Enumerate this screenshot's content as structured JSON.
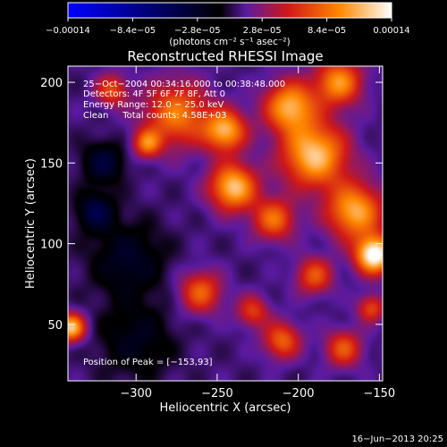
{
  "chart_data": {
    "type": "heatmap",
    "title": "Reconstructed RHESSI Image",
    "xlabel": "Heliocentric X (arcsec)",
    "ylabel": "Heliocentric Y (arcsec)",
    "xlim": [
      -342,
      -148
    ],
    "ylim": [
      15,
      210
    ],
    "x_ticks": [
      {
        "value": -300,
        "label": "−300"
      },
      {
        "value": -250,
        "label": "−250"
      },
      {
        "value": -200,
        "label": "−200"
      },
      {
        "value": -150,
        "label": "−150"
      }
    ],
    "y_ticks": [
      {
        "value": 50,
        "label": "50"
      },
      {
        "value": 100,
        "label": "100"
      },
      {
        "value": 150,
        "label": "150"
      },
      {
        "value": 200,
        "label": "200"
      }
    ],
    "colorbar": {
      "range": [
        -0.00014,
        0.00014
      ],
      "ticks": [
        {
          "value": -0.00014,
          "label": "−0.00014"
        },
        {
          "value": -8.4e-05,
          "label": "−8.4e−05"
        },
        {
          "value": -2.8e-05,
          "label": "−2.8e−05"
        },
        {
          "value": 2.8e-05,
          "label": "2.8e−05"
        },
        {
          "value": 8.4e-05,
          "label": "8.4e−05"
        },
        {
          "value": 0.00014,
          "label": "0.00014"
        }
      ],
      "unit_label": "(photons cm⁻² s⁻¹ asec⁻²)",
      "colors": [
        "#0000ff",
        "#000000",
        "#5a1aa0",
        "#d01818",
        "#ff8800",
        "#ffffff"
      ]
    },
    "annotations": {
      "time": "25−Oct−2004 00:34:16.000 to 00:38:48.000",
      "detectors": "Detectors: 4F 5F 6F 7F 8F, Att 0",
      "energy": "Energy Range: 12.0 − 25.0 keV",
      "clean": "Clean     Total counts: 4.58E+03",
      "peak": "Position of Peak = [−153,93]"
    },
    "peak_position": [
      -153,
      93
    ],
    "sources": [
      {
        "x": -153,
        "y": 93,
        "sigma": 8,
        "amp": 0.00014
      },
      {
        "x": -190,
        "y": 155,
        "sigma": 14,
        "amp": 0.00011
      },
      {
        "x": -240,
        "y": 135,
        "sigma": 10,
        "amp": 0.00011
      },
      {
        "x": -205,
        "y": 185,
        "sigma": 11,
        "amp": 0.0001
      },
      {
        "x": -165,
        "y": 120,
        "sigma": 12,
        "amp": 0.0001
      },
      {
        "x": -275,
        "y": 180,
        "sigma": 14,
        "amp": 8e-05
      },
      {
        "x": -245,
        "y": 170,
        "sigma": 9,
        "amp": 0.0001
      },
      {
        "x": -215,
        "y": 115,
        "sigma": 9,
        "amp": 7.5e-05
      },
      {
        "x": -175,
        "y": 200,
        "sigma": 10,
        "amp": 9e-05
      },
      {
        "x": -260,
        "y": 70,
        "sigma": 9,
        "amp": 7e-05
      },
      {
        "x": -210,
        "y": 40,
        "sigma": 8,
        "amp": 7e-05
      },
      {
        "x": -172,
        "y": 35,
        "sigma": 8,
        "amp": 6.5e-05
      },
      {
        "x": -293,
        "y": 162,
        "sigma": 6,
        "amp": 7.5e-05
      },
      {
        "x": -315,
        "y": 195,
        "sigma": 7,
        "amp": 6e-05
      },
      {
        "x": -340,
        "y": 48,
        "sigma": 6,
        "amp": 0.00011
      },
      {
        "x": -190,
        "y": 80,
        "sigma": 8,
        "amp": 6.5e-05
      },
      {
        "x": -228,
        "y": 58,
        "sigma": 7,
        "amp": 5.5e-05
      },
      {
        "x": -155,
        "y": 60,
        "sigma": 6,
        "amp": 6e-05
      },
      {
        "x": -320,
        "y": 150,
        "sigma": 9,
        "amp": -4.5e-05
      },
      {
        "x": -305,
        "y": 90,
        "sigma": 16,
        "amp": -3.5e-05
      },
      {
        "x": -300,
        "y": 40,
        "sigma": 16,
        "amp": -3e-05
      },
      {
        "x": -325,
        "y": 120,
        "sigma": 8,
        "amp": -5e-05
      }
    ]
  },
  "footer": {
    "date": "16−Jun−2013 20:25"
  }
}
